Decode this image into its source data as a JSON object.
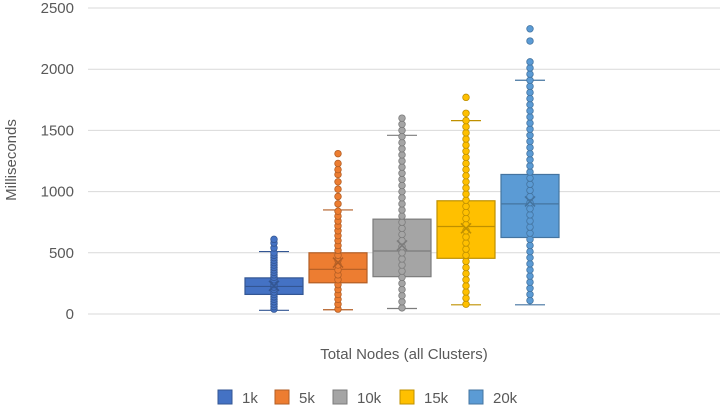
{
  "chart_data": {
    "type": "box",
    "title": "",
    "xlabel": "Total Nodes (all Clusters)",
    "ylabel": "Milliseconds",
    "ylim": [
      0,
      2500
    ],
    "yticks": [
      0,
      500,
      1000,
      1500,
      2000,
      2500
    ],
    "grid": true,
    "legend_position": "bottom",
    "series": [
      {
        "name": "1k",
        "color": "#4472C4",
        "q1": 160,
        "median": 225,
        "q3": 295,
        "mean": 230,
        "whisker_low": 30,
        "whisker_high": 510,
        "points": [
          40,
          60,
          80,
          100,
          120,
          140,
          160,
          180,
          200,
          220,
          240,
          260,
          280,
          300,
          320,
          340,
          360,
          380,
          400,
          420,
          440,
          460,
          480,
          500,
          540,
          580,
          610
        ]
      },
      {
        "name": "5k",
        "color": "#ED7D31",
        "q1": 255,
        "median": 365,
        "q3": 500,
        "mean": 420,
        "whisker_low": 35,
        "whisker_high": 850,
        "points": [
          40,
          80,
          120,
          160,
          200,
          240,
          280,
          320,
          360,
          400,
          440,
          480,
          520,
          560,
          600,
          640,
          680,
          720,
          760,
          800,
          840,
          900,
          960,
          1020,
          1080,
          1140,
          1180,
          1230,
          1310
        ]
      },
      {
        "name": "10k",
        "color": "#A5A5A5",
        "q1": 305,
        "median": 515,
        "q3": 775,
        "mean": 560,
        "whisker_low": 45,
        "whisker_high": 1460,
        "points": [
          50,
          100,
          150,
          200,
          250,
          300,
          350,
          400,
          450,
          500,
          550,
          600,
          650,
          700,
          750,
          800,
          850,
          900,
          950,
          1000,
          1050,
          1100,
          1150,
          1200,
          1250,
          1300,
          1350,
          1400,
          1450,
          1500,
          1550,
          1600
        ]
      },
      {
        "name": "15k",
        "color": "#FFC000",
        "q1": 455,
        "median": 715,
        "q3": 925,
        "mean": 700,
        "whisker_low": 75,
        "whisker_high": 1580,
        "points": [
          80,
          130,
          180,
          230,
          280,
          330,
          380,
          430,
          480,
          530,
          580,
          630,
          680,
          730,
          780,
          830,
          880,
          930,
          980,
          1030,
          1080,
          1130,
          1180,
          1230,
          1280,
          1330,
          1380,
          1430,
          1480,
          1530,
          1580,
          1640,
          1770
        ]
      },
      {
        "name": "20k",
        "color": "#5B9BD5",
        "q1": 625,
        "median": 900,
        "q3": 1140,
        "mean": 920,
        "whisker_low": 75,
        "whisker_high": 1910,
        "points": [
          110,
          160,
          210,
          260,
          310,
          360,
          410,
          460,
          510,
          560,
          610,
          660,
          710,
          760,
          810,
          860,
          910,
          960,
          1010,
          1060,
          1110,
          1160,
          1210,
          1260,
          1310,
          1360,
          1410,
          1460,
          1510,
          1560,
          1610,
          1660,
          1710,
          1760,
          1810,
          1860,
          1910,
          1960,
          2010,
          2060,
          2230,
          2330
        ]
      }
    ]
  }
}
